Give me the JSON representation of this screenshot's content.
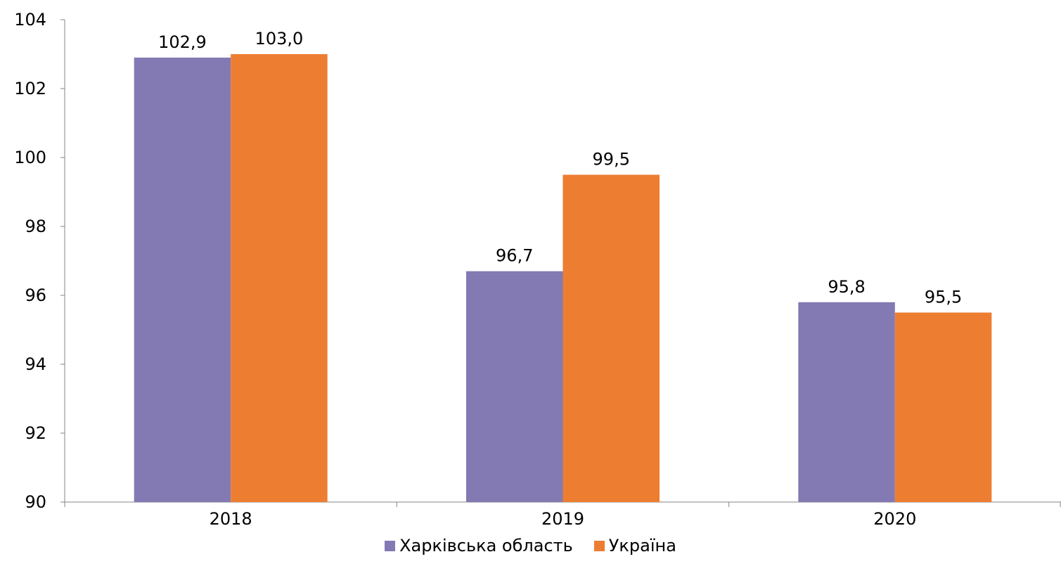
{
  "chart_data": {
    "type": "bar",
    "title": "",
    "xlabel": "",
    "ylabel": "",
    "categories": [
      "2018",
      "2019",
      "2020"
    ],
    "series": [
      {
        "name": "Харківська область",
        "values": [
          102.9,
          96.7,
          95.8
        ],
        "labels": [
          "102,9",
          "96,7",
          "95,8"
        ],
        "color": "#8379b3"
      },
      {
        "name": "Україна",
        "values": [
          103.0,
          99.5,
          95.5
        ],
        "labels": [
          "103,0",
          "99,5",
          "95,5"
        ],
        "color": "#ed7d31"
      }
    ],
    "ylim": [
      90,
      104
    ],
    "yticks": [
      90,
      92,
      94,
      96,
      98,
      100,
      102,
      104
    ],
    "grid": false,
    "legend": "bottom"
  }
}
